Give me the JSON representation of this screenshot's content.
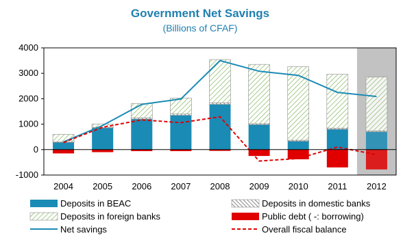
{
  "chart_data": {
    "type": "bar",
    "title": "Government Net Savings",
    "subtitle": "(Billions of CFAF)",
    "categories": [
      "2004",
      "2005",
      "2006",
      "2007",
      "2008",
      "2009",
      "2010",
      "2011",
      "2012"
    ],
    "ylim": [
      -1000,
      4000
    ],
    "yticks": [
      -1000,
      0,
      1000,
      2000,
      3000,
      4000
    ],
    "grid": false,
    "legend_position": "bottom",
    "highlight_category": "2012",
    "highlight_color": "#bfbfbf",
    "series": [
      {
        "name": "Deposits in BEAC",
        "kind": "bar",
        "style": "solid",
        "color": "#1a8bb5",
        "values": [
          280,
          850,
          1200,
          1350,
          1780,
          980,
          330,
          800,
          700
        ]
      },
      {
        "name": "Deposits in domestic banks",
        "kind": "bar",
        "style": "crosshatch",
        "color": "#808080",
        "values": [
          20,
          30,
          50,
          50,
          60,
          40,
          40,
          40,
          40
        ]
      },
      {
        "name": "Deposits in foreign banks",
        "kind": "bar",
        "style": "hatch",
        "color": "#8fbc6f",
        "values": [
          300,
          130,
          560,
          630,
          1700,
          2330,
          2890,
          2120,
          2110
        ]
      },
      {
        "name": "Public debt ( -: borrowing)",
        "kind": "bar",
        "style": "solid",
        "color": "#e00000",
        "values": [
          -150,
          -100,
          -60,
          -60,
          -50,
          -250,
          -380,
          -700,
          -780
        ]
      },
      {
        "name": "Net savings",
        "kind": "line",
        "style": "solid",
        "color": "#1a8bb5",
        "values": [
          300,
          950,
          1780,
          1990,
          3500,
          3080,
          2920,
          2250,
          2090
        ]
      },
      {
        "name": "Overall fiscal balance",
        "kind": "line",
        "style": "dashed",
        "color": "#e00000",
        "values": [
          280,
          880,
          1170,
          1060,
          1290,
          -450,
          -350,
          100,
          -200
        ]
      }
    ]
  }
}
